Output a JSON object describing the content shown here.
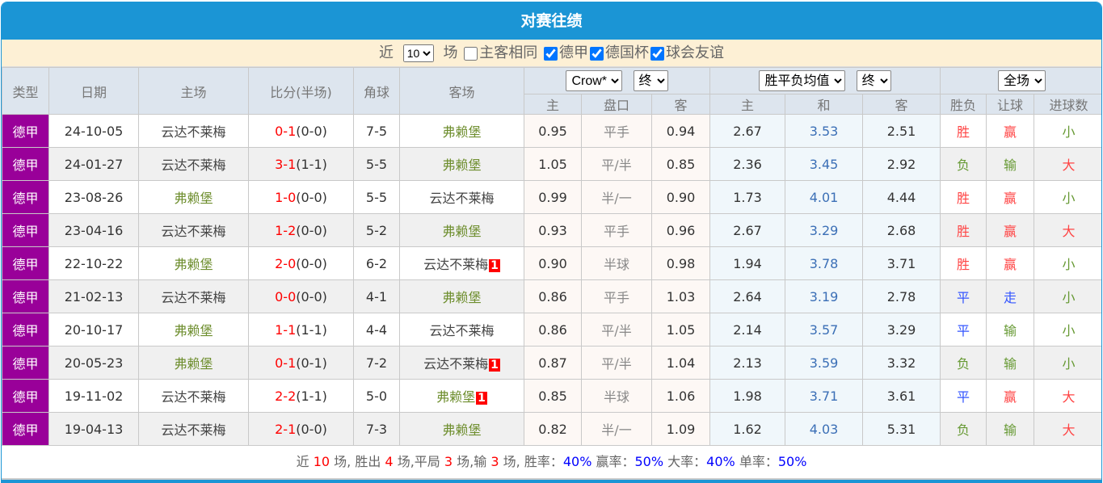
{
  "title": "对赛往绩",
  "filter": {
    "near_label": "近",
    "count": "10",
    "count_options": [
      "10"
    ],
    "games_label": "场",
    "same_home_label": "主客相同",
    "same_home_checked": false,
    "leagues": [
      {
        "label": "德甲",
        "checked": true
      },
      {
        "label": "德国杯",
        "checked": true
      },
      {
        "label": "球会友谊",
        "checked": true
      }
    ]
  },
  "headers": {
    "type": "类型",
    "date": "日期",
    "home": "主场",
    "score": "比分(半场)",
    "corner": "角球",
    "away": "客场",
    "ah_company": "Crow*",
    "ah_stage": "终",
    "eu_company": "胜平负均值",
    "eu_stage": "终",
    "period": "全场",
    "ah_home": "主",
    "ah_line": "盘口",
    "ah_away": "客",
    "eu_home": "主",
    "eu_draw": "和",
    "eu_away": "客",
    "result": "胜负",
    "handicap": "让球",
    "goals": "进球数"
  },
  "colors": {
    "win": "#ff4444",
    "lose": "#669933",
    "draw": "#3355ff",
    "big": "#ff4444",
    "small": "#669933",
    "type_bg": "#990099"
  },
  "rows": [
    {
      "type": "德甲",
      "date": "24-10-05",
      "home": "云达不莱梅",
      "score": "0-1",
      "half": "(0-0)",
      "corner": "7-5",
      "away": "弗赖堡",
      "red_home": "",
      "red_away": "",
      "ah_home": "0.95",
      "ah_line": "平手",
      "ah_away": "0.94",
      "eu_home": "2.67",
      "eu_draw": "3.53",
      "eu_away": "2.51",
      "result": "胜",
      "handicap": "赢",
      "goals": "小"
    },
    {
      "type": "德甲",
      "date": "24-01-27",
      "home": "云达不莱梅",
      "score": "3-1",
      "half": "(1-1)",
      "corner": "5-5",
      "away": "弗赖堡",
      "red_home": "",
      "red_away": "",
      "ah_home": "1.05",
      "ah_line": "平/半",
      "ah_away": "0.85",
      "eu_home": "2.36",
      "eu_draw": "3.45",
      "eu_away": "2.92",
      "result": "负",
      "handicap": "输",
      "goals": "大"
    },
    {
      "type": "德甲",
      "date": "23-08-26",
      "home": "弗赖堡",
      "score": "1-0",
      "half": "(0-0)",
      "corner": "5-5",
      "away": "云达不莱梅",
      "red_home": "",
      "red_away": "",
      "ah_home": "0.99",
      "ah_line": "半/一",
      "ah_away": "0.90",
      "eu_home": "1.73",
      "eu_draw": "4.01",
      "eu_away": "4.44",
      "result": "胜",
      "handicap": "赢",
      "goals": "小"
    },
    {
      "type": "德甲",
      "date": "23-04-16",
      "home": "云达不莱梅",
      "score": "1-2",
      "half": "(0-0)",
      "corner": "5-2",
      "away": "弗赖堡",
      "red_home": "",
      "red_away": "",
      "ah_home": "0.93",
      "ah_line": "平手",
      "ah_away": "0.96",
      "eu_home": "2.67",
      "eu_draw": "3.29",
      "eu_away": "2.68",
      "result": "胜",
      "handicap": "赢",
      "goals": "大"
    },
    {
      "type": "德甲",
      "date": "22-10-22",
      "home": "弗赖堡",
      "score": "2-0",
      "half": "(0-0)",
      "corner": "6-2",
      "away": "云达不莱梅",
      "red_home": "",
      "red_away": "1",
      "ah_home": "0.90",
      "ah_line": "半球",
      "ah_away": "0.98",
      "eu_home": "1.94",
      "eu_draw": "3.78",
      "eu_away": "3.71",
      "result": "胜",
      "handicap": "赢",
      "goals": "小"
    },
    {
      "type": "德甲",
      "date": "21-02-13",
      "home": "云达不莱梅",
      "score": "0-0",
      "half": "(0-0)",
      "corner": "4-1",
      "away": "弗赖堡",
      "red_home": "",
      "red_away": "",
      "ah_home": "0.86",
      "ah_line": "平手",
      "ah_away": "1.03",
      "eu_home": "2.64",
      "eu_draw": "3.19",
      "eu_away": "2.78",
      "result": "平",
      "handicap": "走",
      "goals": "小"
    },
    {
      "type": "德甲",
      "date": "20-10-17",
      "home": "弗赖堡",
      "score": "1-1",
      "half": "(1-1)",
      "corner": "4-4",
      "away": "云达不莱梅",
      "red_home": "",
      "red_away": "",
      "ah_home": "0.86",
      "ah_line": "平/半",
      "ah_away": "1.05",
      "eu_home": "2.14",
      "eu_draw": "3.57",
      "eu_away": "3.29",
      "result": "平",
      "handicap": "输",
      "goals": "小"
    },
    {
      "type": "德甲",
      "date": "20-05-23",
      "home": "弗赖堡",
      "score": "0-1",
      "half": "(0-1)",
      "corner": "7-2",
      "away": "云达不莱梅",
      "red_home": "",
      "red_away": "1",
      "ah_home": "0.87",
      "ah_line": "平/半",
      "ah_away": "1.04",
      "eu_home": "2.13",
      "eu_draw": "3.59",
      "eu_away": "3.32",
      "result": "负",
      "handicap": "输",
      "goals": "小"
    },
    {
      "type": "德甲",
      "date": "19-11-02",
      "home": "云达不莱梅",
      "score": "2-2",
      "half": "(1-1)",
      "corner": "5-0",
      "away": "弗赖堡",
      "red_home": "",
      "red_away": "1",
      "ah_home": "0.85",
      "ah_line": "半球",
      "ah_away": "1.06",
      "eu_home": "1.98",
      "eu_draw": "3.71",
      "eu_away": "3.61",
      "result": "平",
      "handicap": "赢",
      "goals": "大"
    },
    {
      "type": "德甲",
      "date": "19-04-13",
      "home": "云达不莱梅",
      "score": "2-1",
      "half": "(0-0)",
      "corner": "7-3",
      "away": "弗赖堡",
      "red_home": "",
      "red_away": "",
      "ah_home": "0.82",
      "ah_line": "半/一",
      "ah_away": "1.09",
      "eu_home": "1.62",
      "eu_draw": "4.03",
      "eu_away": "5.31",
      "result": "负",
      "handicap": "输",
      "goals": "大"
    }
  ],
  "footer": {
    "t1": "近",
    "games": "10",
    "t2": "场, 胜出",
    "wins": "4",
    "t3": "场,平局",
    "draws": "3",
    "t4": "场,输",
    "losses": "3",
    "t5": "场, 胜率：",
    "win_rate": "40%",
    "t6": "赢率：",
    "handicap_rate": "50%",
    "t7": "大率：",
    "big_rate": "40%",
    "t8": "单率：",
    "odd_rate": "50%"
  }
}
